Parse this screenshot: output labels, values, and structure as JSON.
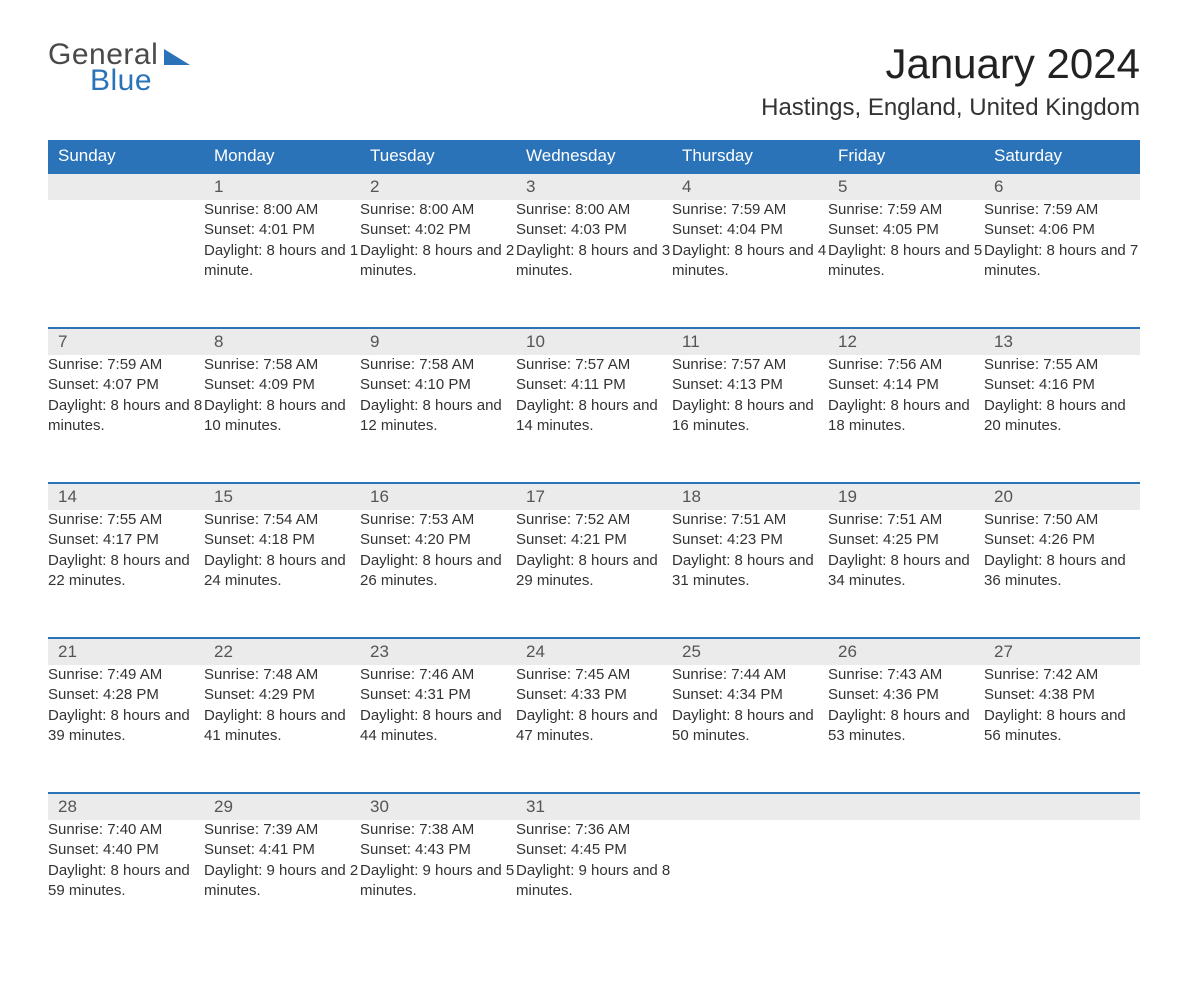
{
  "brand": {
    "word1": "General",
    "word2": "Blue",
    "accent_color": "#2b73b8"
  },
  "title": "January 2024",
  "location": "Hastings, England, United Kingdom",
  "colors": {
    "header_bg": "#2b73b8",
    "header_text": "#ffffff",
    "day_row_bg": "#ebebeb",
    "text": "#333333",
    "page_bg": "#ffffff"
  },
  "font": {
    "family": "Arial",
    "header_size_pt": 13,
    "title_size_pt": 32,
    "body_size_pt": 11
  },
  "weekdays": [
    "Sunday",
    "Monday",
    "Tuesday",
    "Wednesday",
    "Thursday",
    "Friday",
    "Saturday"
  ],
  "weeks": [
    [
      null,
      {
        "n": "1",
        "sunrise": "8:00 AM",
        "sunset": "4:01 PM",
        "daylight": "8 hours and 1 minute."
      },
      {
        "n": "2",
        "sunrise": "8:00 AM",
        "sunset": "4:02 PM",
        "daylight": "8 hours and 2 minutes."
      },
      {
        "n": "3",
        "sunrise": "8:00 AM",
        "sunset": "4:03 PM",
        "daylight": "8 hours and 3 minutes."
      },
      {
        "n": "4",
        "sunrise": "7:59 AM",
        "sunset": "4:04 PM",
        "daylight": "8 hours and 4 minutes."
      },
      {
        "n": "5",
        "sunrise": "7:59 AM",
        "sunset": "4:05 PM",
        "daylight": "8 hours and 5 minutes."
      },
      {
        "n": "6",
        "sunrise": "7:59 AM",
        "sunset": "4:06 PM",
        "daylight": "8 hours and 7 minutes."
      }
    ],
    [
      {
        "n": "7",
        "sunrise": "7:59 AM",
        "sunset": "4:07 PM",
        "daylight": "8 hours and 8 minutes."
      },
      {
        "n": "8",
        "sunrise": "7:58 AM",
        "sunset": "4:09 PM",
        "daylight": "8 hours and 10 minutes."
      },
      {
        "n": "9",
        "sunrise": "7:58 AM",
        "sunset": "4:10 PM",
        "daylight": "8 hours and 12 minutes."
      },
      {
        "n": "10",
        "sunrise": "7:57 AM",
        "sunset": "4:11 PM",
        "daylight": "8 hours and 14 minutes."
      },
      {
        "n": "11",
        "sunrise": "7:57 AM",
        "sunset": "4:13 PM",
        "daylight": "8 hours and 16 minutes."
      },
      {
        "n": "12",
        "sunrise": "7:56 AM",
        "sunset": "4:14 PM",
        "daylight": "8 hours and 18 minutes."
      },
      {
        "n": "13",
        "sunrise": "7:55 AM",
        "sunset": "4:16 PM",
        "daylight": "8 hours and 20 minutes."
      }
    ],
    [
      {
        "n": "14",
        "sunrise": "7:55 AM",
        "sunset": "4:17 PM",
        "daylight": "8 hours and 22 minutes."
      },
      {
        "n": "15",
        "sunrise": "7:54 AM",
        "sunset": "4:18 PM",
        "daylight": "8 hours and 24 minutes."
      },
      {
        "n": "16",
        "sunrise": "7:53 AM",
        "sunset": "4:20 PM",
        "daylight": "8 hours and 26 minutes."
      },
      {
        "n": "17",
        "sunrise": "7:52 AM",
        "sunset": "4:21 PM",
        "daylight": "8 hours and 29 minutes."
      },
      {
        "n": "18",
        "sunrise": "7:51 AM",
        "sunset": "4:23 PM",
        "daylight": "8 hours and 31 minutes."
      },
      {
        "n": "19",
        "sunrise": "7:51 AM",
        "sunset": "4:25 PM",
        "daylight": "8 hours and 34 minutes."
      },
      {
        "n": "20",
        "sunrise": "7:50 AM",
        "sunset": "4:26 PM",
        "daylight": "8 hours and 36 minutes."
      }
    ],
    [
      {
        "n": "21",
        "sunrise": "7:49 AM",
        "sunset": "4:28 PM",
        "daylight": "8 hours and 39 minutes."
      },
      {
        "n": "22",
        "sunrise": "7:48 AM",
        "sunset": "4:29 PM",
        "daylight": "8 hours and 41 minutes."
      },
      {
        "n": "23",
        "sunrise": "7:46 AM",
        "sunset": "4:31 PM",
        "daylight": "8 hours and 44 minutes."
      },
      {
        "n": "24",
        "sunrise": "7:45 AM",
        "sunset": "4:33 PM",
        "daylight": "8 hours and 47 minutes."
      },
      {
        "n": "25",
        "sunrise": "7:44 AM",
        "sunset": "4:34 PM",
        "daylight": "8 hours and 50 minutes."
      },
      {
        "n": "26",
        "sunrise": "7:43 AM",
        "sunset": "4:36 PM",
        "daylight": "8 hours and 53 minutes."
      },
      {
        "n": "27",
        "sunrise": "7:42 AM",
        "sunset": "4:38 PM",
        "daylight": "8 hours and 56 minutes."
      }
    ],
    [
      {
        "n": "28",
        "sunrise": "7:40 AM",
        "sunset": "4:40 PM",
        "daylight": "8 hours and 59 minutes."
      },
      {
        "n": "29",
        "sunrise": "7:39 AM",
        "sunset": "4:41 PM",
        "daylight": "9 hours and 2 minutes."
      },
      {
        "n": "30",
        "sunrise": "7:38 AM",
        "sunset": "4:43 PM",
        "daylight": "9 hours and 5 minutes."
      },
      {
        "n": "31",
        "sunrise": "7:36 AM",
        "sunset": "4:45 PM",
        "daylight": "9 hours and 8 minutes."
      },
      null,
      null,
      null
    ]
  ],
  "labels": {
    "sunrise": "Sunrise:",
    "sunset": "Sunset:",
    "daylight": "Daylight:"
  }
}
